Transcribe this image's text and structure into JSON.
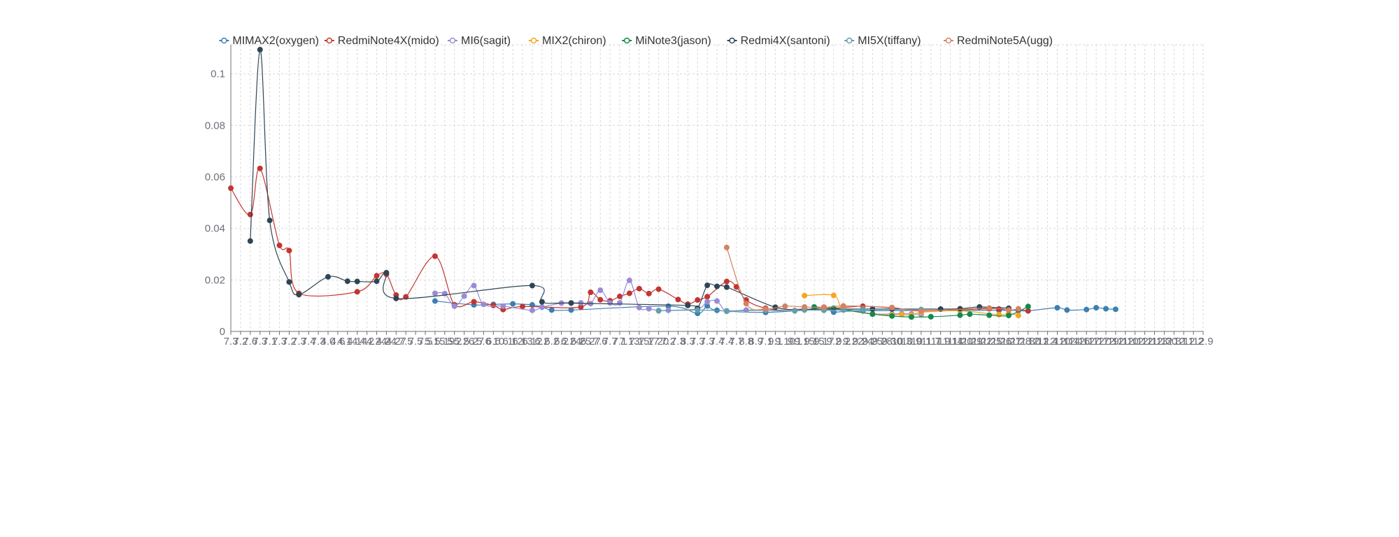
{
  "chart_data": {
    "type": "line",
    "title": "",
    "xlabel": "",
    "ylabel": "",
    "smooth": true,
    "grid": true,
    "legend_position": "top",
    "y_ticks": [
      0,
      0.02,
      0.04,
      0.06,
      0.08,
      0.1
    ],
    "y_tick_labels": [
      "0",
      "0.02",
      "0.04",
      "0.06",
      "0.08",
      "0.1"
    ],
    "categories": [
      "7.3",
      "7.2",
      "7.6",
      "7.3",
      "7.1",
      "7.3",
      "7.2",
      "7.3",
      "7.4",
      "7.3",
      "4.0",
      "4.6",
      "4.14",
      "4.14",
      "4.2",
      "4.24",
      "4.24",
      "4.27",
      "7.5",
      "7.5",
      "7.5",
      "5.15",
      "5.19",
      "5.2",
      "5.26",
      "5.27",
      "5.6",
      "6.6",
      "10.1",
      "6.12",
      "6.13",
      "6.12",
      "6.2",
      "6.2",
      "6.2",
      "6.24",
      "6.25",
      "6.27",
      "7.6",
      "7.7",
      "7.1",
      "7.13",
      "7.15",
      "7.17",
      "7.20",
      "7.2",
      "7.3",
      "8.3",
      "7.3",
      "7.3",
      "7.4",
      "7.4",
      "7.7",
      "8.8",
      "8.9",
      "7.1",
      "9.1",
      "9.10",
      "9.1",
      "9.15",
      "9.15",
      "9.17",
      "9.2",
      "9.2",
      "9.22",
      "9.24",
      "9.25",
      "9.28",
      "9.30",
      "10.3",
      "10.9",
      "10.1",
      "11.7",
      "11.9",
      "11.14",
      "11.20",
      "11.29",
      "11.22",
      "11.25",
      "11.26",
      "11.27",
      "11.28",
      "11.30",
      "12.1",
      "12.4",
      "12.10",
      "12.14",
      "12.16",
      "12.17",
      "12.17",
      "12.19",
      "12.11",
      "12.10",
      "12.12",
      "12.11",
      "12.13",
      "12.30",
      "12.31",
      "12.1",
      "12.2",
      "12.9"
    ],
    "series": [
      {
        "name": "MIMAX2(oxygen)",
        "color": "#3c7fb3",
        "points": [
          [
            21,
            0.0118
          ],
          [
            25,
            0.0103
          ],
          [
            27,
            0.0105
          ],
          [
            29,
            0.0107
          ],
          [
            31,
            0.0103
          ],
          [
            32,
            0.0095
          ],
          [
            33,
            0.0083
          ],
          [
            35,
            0.0083
          ],
          [
            45,
            0.0098
          ],
          [
            48,
            0.007
          ],
          [
            49,
            0.0099
          ],
          [
            50,
            0.0082
          ],
          [
            55,
            0.0074
          ],
          [
            61,
            0.0087
          ],
          [
            62,
            0.0075
          ],
          [
            65,
            0.008
          ],
          [
            79,
            0.0082
          ],
          [
            81,
            0.0081
          ],
          [
            82,
            0.008
          ],
          [
            85,
            0.0092
          ],
          [
            86,
            0.0083
          ],
          [
            88,
            0.0085
          ],
          [
            89,
            0.0092
          ],
          [
            90,
            0.0088
          ],
          [
            91,
            0.0086
          ]
        ]
      },
      {
        "name": "RedmiNote4X(mido)",
        "color": "#c23531",
        "points": [
          [
            0,
            0.0556
          ],
          [
            2,
            0.0454
          ],
          [
            3,
            0.0633
          ],
          [
            5,
            0.0334
          ],
          [
            6,
            0.0314
          ],
          [
            7,
            0.0148
          ],
          [
            13,
            0.0154
          ],
          [
            15,
            0.0216
          ],
          [
            16,
            0.0222
          ],
          [
            17,
            0.0141
          ],
          [
            18,
            0.0134
          ],
          [
            21,
            0.0292
          ],
          [
            23,
            0.0103
          ],
          [
            25,
            0.0115
          ],
          [
            27,
            0.0101
          ],
          [
            28,
            0.0085
          ],
          [
            30,
            0.0097
          ],
          [
            36,
            0.0095
          ],
          [
            37,
            0.0152
          ],
          [
            38,
            0.0123
          ],
          [
            39,
            0.0119
          ],
          [
            40,
            0.0136
          ],
          [
            41,
            0.0148
          ],
          [
            42,
            0.0166
          ],
          [
            43,
            0.0147
          ],
          [
            44,
            0.0164
          ],
          [
            46,
            0.0124
          ],
          [
            47,
            0.0106
          ],
          [
            48,
            0.0122
          ],
          [
            49,
            0.0135
          ],
          [
            51,
            0.0194
          ],
          [
            52,
            0.0173
          ],
          [
            53,
            0.0122
          ],
          [
            55,
            0.009
          ],
          [
            58,
            0.0081
          ],
          [
            61,
            0.0094
          ],
          [
            62,
            0.009
          ],
          [
            65,
            0.0098
          ],
          [
            68,
            0.0091
          ],
          [
            71,
            0.0081
          ],
          [
            78,
            0.0088
          ],
          [
            79,
            0.0087
          ],
          [
            80,
            0.0083
          ],
          [
            81,
            0.0085
          ],
          [
            82,
            0.008
          ]
        ]
      },
      {
        "name": "MI6(sagit)",
        "color": "#9b8bd3",
        "points": [
          [
            21,
            0.0148
          ],
          [
            22,
            0.0147
          ],
          [
            23,
            0.0098
          ],
          [
            24,
            0.0137
          ],
          [
            25,
            0.0178
          ],
          [
            26,
            0.0105
          ],
          [
            28,
            0.0098
          ],
          [
            31,
            0.0082
          ],
          [
            32,
            0.0094
          ],
          [
            34,
            0.011
          ],
          [
            35,
            0.0111
          ],
          [
            36,
            0.0111
          ],
          [
            37,
            0.0108
          ],
          [
            38,
            0.016
          ],
          [
            39,
            0.0111
          ],
          [
            40,
            0.0111
          ],
          [
            41,
            0.0198
          ],
          [
            42,
            0.0093
          ],
          [
            43,
            0.0088
          ],
          [
            44,
            0.0081
          ],
          [
            45,
            0.0082
          ],
          [
            48,
            0.0088
          ],
          [
            49,
            0.0115
          ],
          [
            50,
            0.0118
          ],
          [
            51,
            0.0078
          ],
          [
            53,
            0.0083
          ],
          [
            58,
            0.008
          ],
          [
            62,
            0.0088
          ],
          [
            66,
            0.0069
          ],
          [
            68,
            0.0068
          ],
          [
            69,
            0.0069
          ],
          [
            70,
            0.0068
          ],
          [
            71,
            0.0066
          ]
        ]
      },
      {
        "name": "MIX2(chiron)",
        "color": "#f5a623",
        "points": [
          [
            59,
            0.0139
          ],
          [
            62,
            0.014
          ],
          [
            63,
            0.0089
          ],
          [
            66,
            0.0068
          ],
          [
            68,
            0.0065
          ],
          [
            69,
            0.0066
          ],
          [
            70,
            0.0063
          ],
          [
            71,
            0.0074
          ],
          [
            75,
            0.008
          ],
          [
            79,
            0.0065
          ],
          [
            80,
            0.007
          ],
          [
            81,
            0.0062
          ]
        ]
      },
      {
        "name": "MiNote3(jason)",
        "color": "#138a4c",
        "points": [
          [
            60,
            0.0095
          ],
          [
            62,
            0.009
          ],
          [
            66,
            0.0067
          ],
          [
            68,
            0.006
          ],
          [
            70,
            0.0056
          ],
          [
            72,
            0.0057
          ],
          [
            75,
            0.0063
          ],
          [
            76,
            0.0067
          ],
          [
            78,
            0.0063
          ],
          [
            80,
            0.0062
          ],
          [
            82,
            0.0097
          ]
        ]
      },
      {
        "name": "Redmi4X(santoni)",
        "color": "#2f4554",
        "points": [
          [
            2,
            0.0351
          ],
          [
            3,
            0.1094
          ],
          [
            4,
            0.0431
          ],
          [
            6,
            0.0192
          ],
          [
            7,
            0.0143
          ],
          [
            10,
            0.0212
          ],
          [
            12,
            0.0195
          ],
          [
            13,
            0.0194
          ],
          [
            15,
            0.0195
          ],
          [
            16,
            0.0228
          ],
          [
            17,
            0.0128
          ],
          [
            31,
            0.0178
          ],
          [
            32,
            0.0115
          ],
          [
            35,
            0.011
          ],
          [
            47,
            0.0101
          ],
          [
            48,
            0.009
          ],
          [
            49,
            0.0179
          ],
          [
            50,
            0.0175
          ],
          [
            51,
            0.0172
          ],
          [
            56,
            0.0094
          ],
          [
            59,
            0.0086
          ],
          [
            61,
            0.0087
          ],
          [
            66,
            0.0087
          ],
          [
            68,
            0.0087
          ],
          [
            73,
            0.0087
          ],
          [
            75,
            0.0088
          ],
          [
            77,
            0.0095
          ],
          [
            80,
            0.009
          ]
        ]
      },
      {
        "name": "MI5X(tiffany)",
        "color": "#61a0a8",
        "points": [
          [
            44,
            0.008
          ],
          [
            48,
            0.0083
          ],
          [
            51,
            0.008
          ],
          [
            55,
            0.0082
          ],
          [
            58,
            0.008
          ],
          [
            59,
            0.0083
          ],
          [
            61,
            0.0082
          ],
          [
            63,
            0.0083
          ],
          [
            65,
            0.0085
          ],
          [
            71,
            0.0085
          ]
        ]
      },
      {
        "name": "RedmiNote5A(ugg)",
        "color": "#d48265",
        "points": [
          [
            51,
            0.0326
          ],
          [
            53,
            0.0108
          ],
          [
            55,
            0.0087
          ],
          [
            57,
            0.0098
          ],
          [
            59,
            0.0095
          ],
          [
            61,
            0.0093
          ],
          [
            63,
            0.0099
          ],
          [
            68,
            0.0093
          ],
          [
            71,
            0.0079
          ],
          [
            78,
            0.0091
          ],
          [
            80,
            0.0083
          ],
          [
            81,
            0.0088
          ]
        ]
      }
    ]
  }
}
